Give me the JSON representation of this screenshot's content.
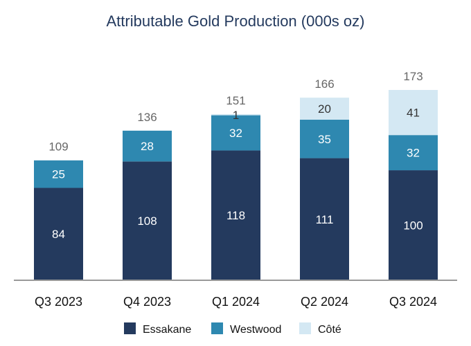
{
  "chart_data": {
    "type": "bar",
    "stacked": true,
    "title": "Attributable Gold Production (000s oz)",
    "xlabel": "",
    "ylabel": "",
    "ylim": [
      0,
      190
    ],
    "grid": false,
    "legend_position": "bottom",
    "categories": [
      "Q3 2023",
      "Q4 2023",
      "Q1 2024",
      "Q2 2024",
      "Q3 2024"
    ],
    "series": [
      {
        "name": "Essakane",
        "color": "#243a5e",
        "values": [
          84,
          108,
          118,
          111,
          100
        ],
        "labels": [
          "84",
          "108",
          "118",
          "111",
          "100"
        ]
      },
      {
        "name": "Westwood",
        "color": "#2e88b0",
        "values": [
          25,
          28,
          32,
          35,
          32
        ],
        "labels": [
          "25",
          "28",
          "32",
          "35",
          "32"
        ]
      },
      {
        "name": "Côté",
        "color": "#d4e8f3",
        "values": [
          0,
          0,
          1,
          20,
          41
        ],
        "labels": [
          "",
          "",
          "1",
          "20",
          "41"
        ]
      }
    ],
    "totals": [
      "109",
      "136",
      "151",
      "166",
      "173"
    ]
  }
}
